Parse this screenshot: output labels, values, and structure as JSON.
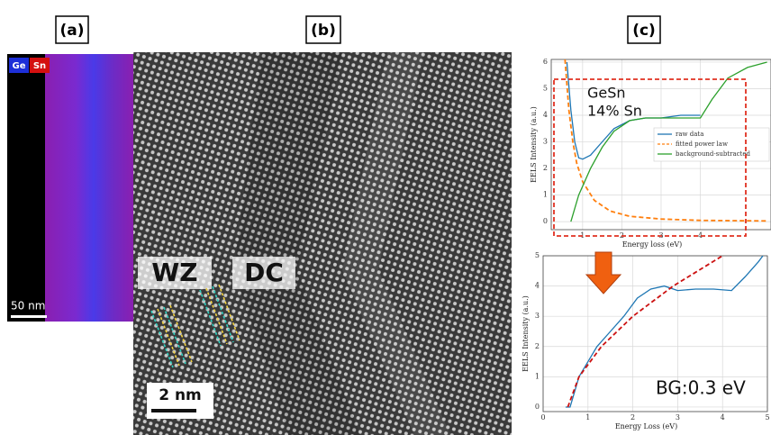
{
  "panels": {
    "a": {
      "label": "(a)",
      "legend": [
        "Ge",
        "Sn"
      ],
      "scale_bar": "50 nm"
    },
    "b": {
      "label": "(b)",
      "annotations": [
        "WZ",
        "DC"
      ],
      "scale_bar": "2 nm"
    },
    "c": {
      "label": "(c)"
    }
  },
  "chart_data": [
    {
      "type": "line",
      "xlabel": "Energy loss (eV)",
      "ylabel": "EELS Intensity (a.u.)",
      "annotations": [
        "GeSn",
        "14% Sn"
      ],
      "xlim": [
        0.2,
        5.8
      ],
      "ylim": [
        -0.3,
        6.1
      ],
      "xticks": [
        1,
        2,
        3,
        4
      ],
      "yticks": [
        0,
        1,
        2,
        3,
        4,
        5,
        6
      ],
      "grid": true,
      "legend": "center right",
      "series": [
        {
          "name": "raw data",
          "color": "#1f77b4",
          "x": [
            0.6,
            0.7,
            0.8,
            0.9,
            1.0,
            1.2,
            1.5,
            1.8,
            2.2,
            2.6,
            3.0,
            3.5,
            4.0
          ],
          "values": [
            6.0,
            4.2,
            3.0,
            2.4,
            2.35,
            2.5,
            3.0,
            3.5,
            3.8,
            3.9,
            3.9,
            4.0,
            4.0
          ]
        },
        {
          "name": "fitted power law",
          "color": "#ff7f0e",
          "dash": true,
          "x": [
            0.55,
            0.65,
            0.75,
            0.85,
            1.0,
            1.3,
            1.7,
            2.2,
            3.0,
            4.0,
            5.7
          ],
          "values": [
            6.1,
            4.2,
            3.0,
            2.2,
            1.5,
            0.8,
            0.4,
            0.2,
            0.1,
            0.05,
            0.03
          ]
        },
        {
          "name": "background-subtracted",
          "color": "#2ca02c",
          "x": [
            0.7,
            0.9,
            1.2,
            1.5,
            1.8,
            2.2,
            2.6,
            3.0,
            3.5,
            4.0,
            4.3,
            4.7,
            5.2,
            5.7
          ],
          "values": [
            0,
            1.0,
            2.0,
            2.8,
            3.4,
            3.8,
            3.9,
            3.9,
            3.9,
            3.9,
            4.6,
            5.4,
            5.8,
            6.0
          ]
        }
      ]
    },
    {
      "type": "line",
      "xlabel": "Energy Loss (eV)",
      "ylabel": "EELS Intensity (a.u.)",
      "annotations": [
        "BG:0.3 eV"
      ],
      "xlim": [
        0,
        5
      ],
      "ylim": [
        -0.15,
        5
      ],
      "xticks": [
        0,
        1,
        2,
        3,
        4,
        5
      ],
      "yticks": [
        0,
        1,
        2,
        3,
        4,
        5
      ],
      "grid": true,
      "series": [
        {
          "color": "#1f77b4",
          "x": [
            0.5,
            0.6,
            0.7,
            0.8,
            1.0,
            1.2,
            1.5,
            1.8,
            2.1,
            2.4,
            2.7,
            3.0,
            3.4,
            3.8,
            4.2,
            4.5,
            4.8,
            4.9
          ],
          "values": [
            0,
            0,
            0.5,
            1.0,
            1.5,
            2.0,
            2.5,
            3.0,
            3.6,
            3.9,
            4.0,
            3.85,
            3.9,
            3.9,
            3.85,
            4.3,
            4.8,
            5.0
          ]
        },
        {
          "color": "#cc1111",
          "dash": true,
          "x": [
            0.55,
            0.8,
            1.3,
            2.0,
            2.9,
            4.0
          ],
          "values": [
            0,
            1.0,
            2.0,
            3.0,
            4.0,
            5.0
          ]
        }
      ]
    }
  ]
}
